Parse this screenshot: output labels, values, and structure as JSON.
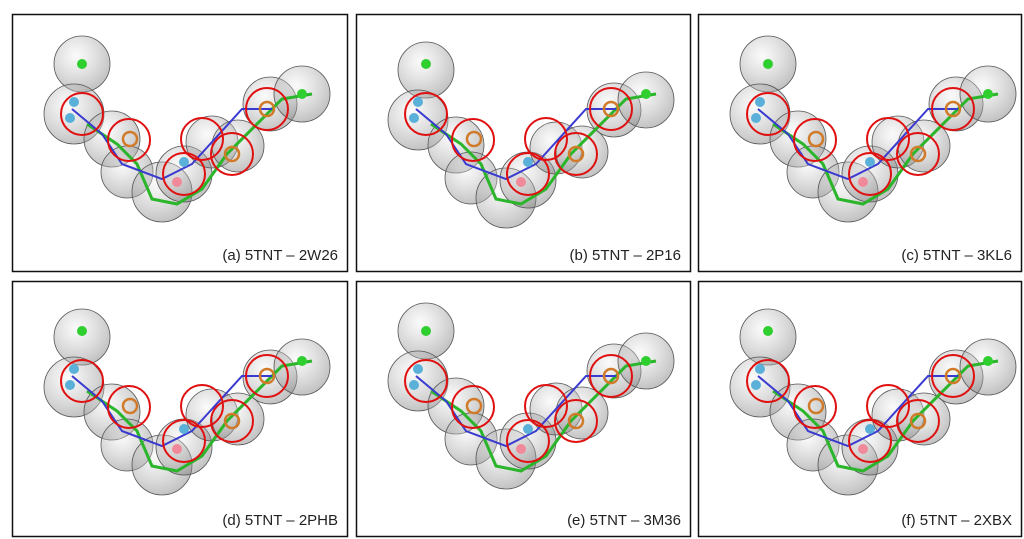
{
  "panels": [
    {
      "caption": "(a) 5TNT  – 2W26"
    },
    {
      "caption": "(b) 5TNT  – 2P16"
    },
    {
      "caption": "(c) 5TNT  – 3KL6"
    },
    {
      "caption": "(d) 5TNT  – 2PHB"
    },
    {
      "caption": "(e) 5TNT  – 3M36"
    },
    {
      "caption": "(f) 5TNT  – 2XBX"
    }
  ]
}
